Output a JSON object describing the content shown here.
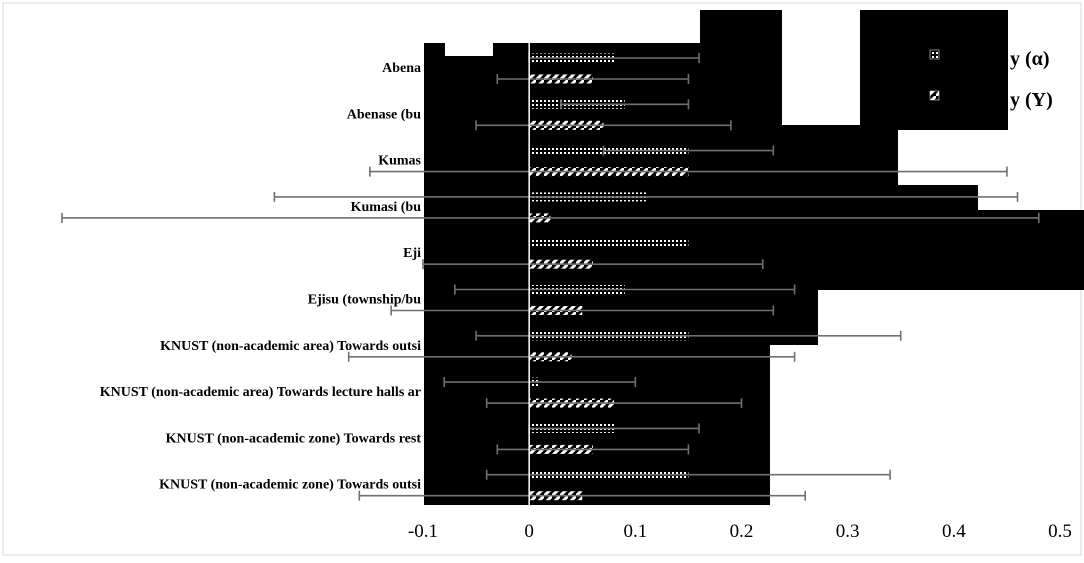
{
  "chart_data": {
    "type": "bar",
    "orientation": "horizontal",
    "categories": [
      "Abenase",
      "Abenase (bus stop)",
      "Kumasi",
      "Kumasi (bus stop)",
      "Ejisu",
      "Ejisu (township/bus stop)",
      "KNUST (non-academic area) Towards outside",
      "KNUST (non-academic area) Towards lecture halls and",
      "KNUST (non-academic zone) Towards restaurants",
      "KNUST (non-academic zone) Towards outside"
    ],
    "category_labels_visible": [
      "Abena",
      "Abenase (bu",
      "Kumas",
      "Kumasi (bu",
      "Eji",
      "Ejisu (township/bu",
      "KNUST (non-academic area) Towards outsi",
      "KNUST (non-academic area) Towards lecture halls ar",
      "KNUST (non-academic zone) Towards rest",
      "KNUST (non-academic zone) Towards outsi"
    ],
    "series": [
      {
        "name": "α",
        "legend_visible_text": "y (α)",
        "pattern": "dots",
        "values": [
          0.08,
          0.09,
          0.15,
          0.11,
          0.15,
          0.09,
          0.15,
          0.01,
          0.08,
          0.15
        ],
        "error": [
          0.08,
          0.06,
          0.08,
          0.35,
          0.0,
          0.16,
          0.2,
          0.09,
          0.08,
          0.19
        ]
      },
      {
        "name": "Υ",
        "legend_visible_text": "y (Υ)",
        "pattern": "diagonal",
        "values": [
          0.06,
          0.07,
          0.15,
          0.02,
          0.06,
          0.05,
          0.04,
          0.08,
          0.06,
          0.05
        ],
        "error": [
          0.09,
          0.12,
          0.3,
          0.46,
          0.16,
          0.18,
          0.21,
          0.12,
          0.09,
          0.21
        ]
      }
    ],
    "x_ticks": [
      "-0.1",
      "0",
      "0.1",
      "0.2",
      "0.3",
      "0.4",
      "0.5"
    ],
    "xlim": [
      -0.1,
      0.5
    ],
    "grid": false,
    "legend_position": "top-right",
    "title": "",
    "xlabel": "",
    "ylabel": ""
  }
}
